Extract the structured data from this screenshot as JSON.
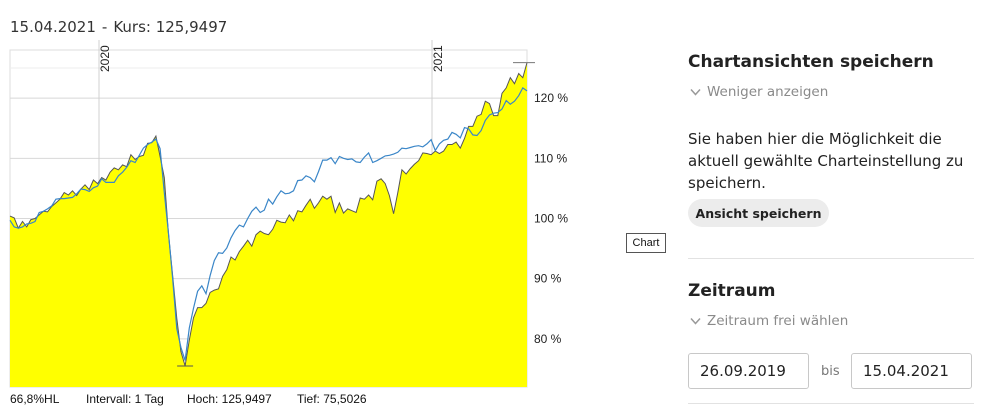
{
  "header": {
    "date": "15.04.2021",
    "separator": "-",
    "kurs": "Kurs: 125,9497"
  },
  "chart_data": {
    "type": "area",
    "x_ticks": [
      "2020",
      "2021"
    ],
    "y_ticks": [
      "120 %",
      "110 %",
      "100 %",
      "90 %",
      "80 %"
    ],
    "ylim": [
      72,
      128
    ],
    "grid": true,
    "area_color": "#ffff00",
    "line_color": "#3a86c8",
    "series": [
      {
        "role": "area",
        "values": [
          100.4,
          100.1,
          98.4,
          99.5,
          98.6,
          99.8,
          100.0,
          100.6,
          101.2,
          101.1,
          102.0,
          102.6,
          103.2,
          104.3,
          103.9,
          104.6,
          103.8,
          104.9,
          105.6,
          104.8,
          106.4,
          105.8,
          106.8,
          106.4,
          107.7,
          108.4,
          108.1,
          108.9,
          108.6,
          110.6,
          109.8,
          110.3,
          110.5,
          112.5,
          112.6,
          113.7,
          110.3,
          106.8,
          97.6,
          90.6,
          83.4,
          77.9,
          75.5,
          79.8,
          83.5,
          85.2,
          85.2,
          85.9,
          87.7,
          88.1,
          88.3,
          90.4,
          91.5,
          93.6,
          93.1,
          94.5,
          95.4,
          96.4,
          95.4,
          97.3,
          97.9,
          97.5,
          97.3,
          98.2,
          99.7,
          99.4,
          99.3,
          100.6,
          99.6,
          101.3,
          101.1,
          102.2,
          103.2,
          101.7,
          102.6,
          103.7,
          103.2,
          103.7,
          101.0,
          102.6,
          100.9,
          101.6,
          101.3,
          101.0,
          103.4,
          103.2,
          103.9,
          103.1,
          106.2,
          106.6,
          105.8,
          103.8,
          100.8,
          104.3,
          108.1,
          107.4,
          108.3,
          109.0,
          109.6,
          110.9,
          110.8,
          110.6,
          111.2,
          110.8,
          111.2,
          112.3,
          112.3,
          112.7,
          111.7,
          113.3,
          115.3,
          115.3,
          117.0,
          117.3,
          119.5,
          119.1,
          117.1,
          117.1,
          120.8,
          121.7,
          123.4,
          122.4,
          124.1,
          123.4,
          125.9
        ]
      },
      {
        "role": "line",
        "values": [
          99.7,
          98.6,
          98.4,
          98.6,
          99.1,
          99.2,
          99.5,
          101.0,
          101.2,
          101.6,
          102.1,
          103.2,
          103.3,
          103.3,
          103.4,
          103.5,
          104.1,
          104.9,
          104.8,
          104.5,
          105.1,
          105.4,
          106.6,
          106.0,
          106.0,
          106.0,
          107.1,
          107.7,
          108.5,
          109.6,
          109.3,
          110.5,
          111.7,
          112.3,
          112.7,
          113.2,
          111.6,
          104.3,
          97.7,
          90.1,
          81.7,
          78.6,
          76.4,
          81.8,
          85.1,
          87.9,
          88.8,
          87.5,
          90.5,
          93.0,
          94.3,
          94.2,
          95.1,
          96.8,
          98.0,
          98.9,
          98.6,
          100.0,
          101.2,
          101.9,
          101.0,
          101.4,
          103.2,
          102.4,
          103.6,
          104.6,
          104.1,
          104.2,
          104.6,
          106.3,
          106.4,
          107.1,
          106.8,
          106.1,
          107.8,
          109.7,
          109.7,
          110.1,
          109.1,
          110.3,
          110.0,
          109.8,
          109.9,
          109.4,
          109.3,
          110.2,
          110.9,
          109.3,
          109.6,
          110.0,
          110.4,
          110.5,
          110.7,
          111.0,
          111.7,
          111.6,
          111.8,
          112.0,
          112.1,
          111.9,
          112.4,
          113.1,
          111.3,
          112.4,
          113.0,
          113.2,
          114.3,
          114.0,
          113.4,
          115.1,
          114.9,
          113.9,
          113.8,
          114.6,
          116.3,
          117.2,
          117.5,
          117.6,
          118.2,
          119.6,
          119.0,
          119.5,
          120.4,
          121.7,
          121.2
        ]
      }
    ]
  },
  "footer": {
    "hl": "66,8%HL",
    "intervall": "Intervall: 1 Tag",
    "hoch": "Hoch: 125,9497",
    "tief": "Tief: 75,5026"
  },
  "chart_tag": "Chart",
  "panel": {
    "save_title": "Chartansichten speichern",
    "toggle_less": "Weniger anzeigen",
    "description": "Sie haben hier die Möglichkeit die aktuell gewählte Charteinstellung zu speichern.",
    "save_button": "Ansicht speichern",
    "period_title": "Zeitraum",
    "toggle_period": "Zeitraum frei wählen",
    "from_date": "26.09.2019",
    "bis_label": "bis",
    "to_date": "15.04.2021"
  }
}
